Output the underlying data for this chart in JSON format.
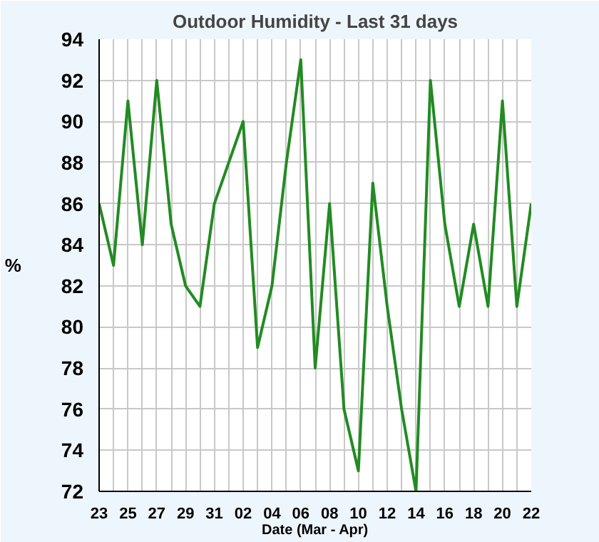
{
  "chart_data": {
    "type": "line",
    "title": "Outdoor Humidity - Last 31 days",
    "xlabel": "Date (Mar - Apr)",
    "ylabel": "%",
    "categories": [
      "23",
      null,
      "25",
      null,
      "27",
      null,
      "29",
      null,
      "31",
      null,
      "02",
      null,
      "04",
      null,
      "06",
      null,
      "08",
      null,
      "10",
      null,
      "12",
      null,
      "14",
      null,
      "16",
      null,
      "18",
      null,
      "20",
      null,
      "22"
    ],
    "series": [
      {
        "color": "#228b22",
        "values": [
          86,
          83,
          91,
          84,
          92,
          85,
          82,
          81,
          86,
          88,
          90,
          79,
          82,
          88,
          93,
          78,
          86,
          76,
          73,
          87,
          81,
          76,
          72,
          92,
          85,
          81,
          85,
          81,
          91,
          81,
          86
        ]
      }
    ],
    "ylim": [
      72,
      94
    ],
    "yticks": [
      72,
      74,
      76,
      78,
      80,
      82,
      84,
      86,
      88,
      90,
      92,
      94
    ],
    "grid": true,
    "line_style": "solid"
  }
}
